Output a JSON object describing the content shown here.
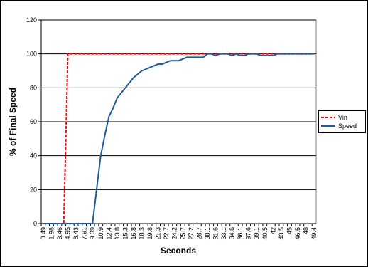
{
  "chart_data": {
    "type": "line",
    "x_label": "Seconds",
    "y_label": "% of Final Speed",
    "categories": [
      "0.49",
      null,
      "1.98",
      null,
      "3.46",
      null,
      "4.95",
      null,
      "6.43",
      null,
      "7.91",
      null,
      "9.39",
      null,
      "10.9",
      null,
      "12.4",
      null,
      "13.8",
      null,
      "15.3",
      null,
      "16.8",
      null,
      "18.3",
      null,
      "19.8",
      null,
      "21.3",
      null,
      "22.7",
      null,
      "24.2",
      null,
      "25.7",
      null,
      "27.2",
      null,
      "28.7",
      null,
      "30.1",
      null,
      "31.6",
      null,
      "33.1",
      null,
      "34.6",
      null,
      "36.1",
      null,
      "37.6",
      null,
      "39.1",
      null,
      "40.5",
      null,
      "42",
      null,
      "43.5",
      null,
      "45",
      null,
      "46.5",
      null,
      "48",
      null,
      "49.4"
    ],
    "series": [
      {
        "name": "Vin",
        "color": "#ff0000",
        "dashed": true,
        "values": [
          0,
          0,
          0,
          0,
          0,
          0,
          100,
          100,
          100,
          100,
          100,
          100,
          100,
          100,
          100,
          100,
          100,
          100,
          100,
          100,
          100,
          100,
          100,
          100,
          100,
          100,
          100,
          100,
          100,
          100,
          100,
          100,
          100,
          100,
          100,
          100,
          100,
          100,
          100,
          100,
          100,
          100,
          100,
          100,
          100,
          100,
          100,
          100,
          100,
          100,
          100,
          100,
          100,
          100,
          100,
          100,
          100,
          100,
          100,
          100,
          100,
          100,
          100,
          100,
          100,
          100,
          100
        ]
      },
      {
        "name": "Speed",
        "color": "#1f5c99",
        "dashed": false,
        "values": [
          0,
          0,
          0,
          0,
          0,
          0,
          0,
          0,
          0,
          0,
          0,
          0,
          0,
          20,
          40,
          52,
          63,
          68,
          74,
          77,
          80,
          83,
          86,
          88,
          90,
          91,
          92,
          93,
          94,
          94,
          95,
          96,
          96,
          96,
          97,
          98,
          98,
          98,
          98,
          98,
          100,
          100,
          99,
          100,
          100,
          100,
          99,
          100,
          99,
          99,
          100,
          100,
          100,
          99,
          99,
          99,
          99,
          100,
          100,
          100,
          100,
          100,
          100,
          100,
          100,
          100,
          100
        ]
      }
    ],
    "ylim": [
      0,
      120
    ],
    "yticks": [
      0,
      20,
      40,
      60,
      80,
      100,
      120
    ],
    "grid": true,
    "legend": "right"
  }
}
